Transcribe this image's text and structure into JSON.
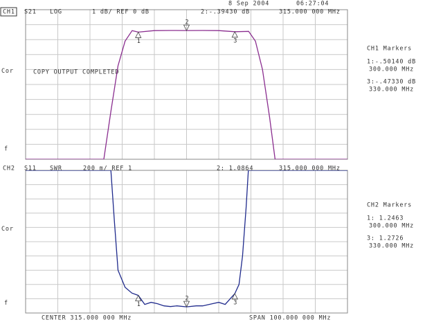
{
  "header": {
    "date": "8 Sep 2004",
    "time": "06:27:04"
  },
  "chart_data": [
    {
      "type": "line",
      "channel": "CH1",
      "parameter": "S21",
      "format": "LOG",
      "scale": "1 dB/ REF 0 dB",
      "active_marker": "2:-.39430 dB",
      "active_marker_freq": "315.000 000 MHz",
      "side_labels": [
        "Cor",
        "f"
      ],
      "annotation": "COPY OUTPUT COMPLETED",
      "markers_title": "CH1 Markers",
      "marker_readouts": [
        [
          "1:-.50140 dB",
          "300.000 MHz"
        ],
        [
          "3:-.47330 dB",
          "330.000 MHz"
        ]
      ],
      "color": "#8a2d8f",
      "x": [
        265,
        280,
        289.3,
        291.5,
        293.7,
        295.9,
        298.1,
        300,
        305,
        310,
        315,
        320,
        325,
        330,
        334.3,
        336.4,
        338.6,
        340.8,
        342.5,
        350,
        365
      ],
      "values": [
        -9,
        -9,
        -9,
        -5.8,
        -2.75,
        -1.1,
        -0.4,
        -0.5014,
        -0.4,
        -0.39,
        -0.3943,
        -0.39,
        -0.4,
        -0.4733,
        -0.45,
        -1.1,
        -3,
        -6.2,
        -9,
        -9,
        -9
      ],
      "markers": {
        "labels": [
          "1",
          "2",
          "3"
        ],
        "x": [
          300,
          315,
          330
        ],
        "values": [
          -0.5014,
          -0.3943,
          -0.4733
        ]
      },
      "xlim": [
        265,
        365
      ],
      "xticks": [
        265,
        275,
        285,
        295,
        305,
        315,
        325,
        335,
        345,
        355,
        365
      ],
      "ylim": [
        -9,
        1
      ],
      "yticks": [
        -9,
        -8,
        -7,
        -6,
        -5,
        -4,
        -3,
        -2,
        -1,
        0,
        1
      ],
      "grid": true
    },
    {
      "type": "line",
      "channel": "CH2",
      "parameter": "S11",
      "format": "SWR",
      "scale": "200 m/ REF 1",
      "active_marker": "2: 1.0864",
      "active_marker_freq": "315.000 000 MHz",
      "side_labels": [
        "Cor",
        "f"
      ],
      "markers_title": "CH2 Markers",
      "marker_readouts": [
        [
          "1: 1.2463",
          "300.000 MHz"
        ],
        [
          "3: 1.2726",
          "330.000 MHz"
        ]
      ],
      "color": "#1f2a8c",
      "x": [
        265,
        280,
        291.5,
        292.6,
        293.7,
        295.9,
        298,
        300,
        302,
        304,
        306,
        308,
        310,
        312,
        315,
        318,
        320,
        323,
        325,
        327,
        330,
        331.3,
        332.4,
        333.5,
        334.2,
        345,
        365
      ],
      "values": [
        3,
        3,
        3,
        2.28,
        1.6,
        1.36,
        1.28,
        1.2463,
        1.12,
        1.15,
        1.13,
        1.1,
        1.09,
        1.1,
        1.0864,
        1.1,
        1.1,
        1.13,
        1.15,
        1.12,
        1.2726,
        1.4,
        1.8,
        2.47,
        3,
        3,
        3
      ],
      "markers": {
        "labels": [
          "1",
          "2",
          "3"
        ],
        "x": [
          300,
          315,
          330
        ],
        "values": [
          1.2463,
          1.0864,
          1.2726
        ]
      },
      "xlim": [
        265,
        365
      ],
      "xticks": [
        265,
        275,
        285,
        295,
        305,
        315,
        325,
        335,
        345,
        355,
        365
      ],
      "ylim": [
        1,
        3
      ],
      "yticks": [
        1,
        1.2,
        1.4,
        1.6,
        1.8,
        2,
        2.2,
        2.4,
        2.6,
        2.8,
        3
      ],
      "grid": true
    }
  ],
  "footer": {
    "center": "CENTER 315.000 000 MHz",
    "span": "SPAN 100.000 000 MHz"
  }
}
